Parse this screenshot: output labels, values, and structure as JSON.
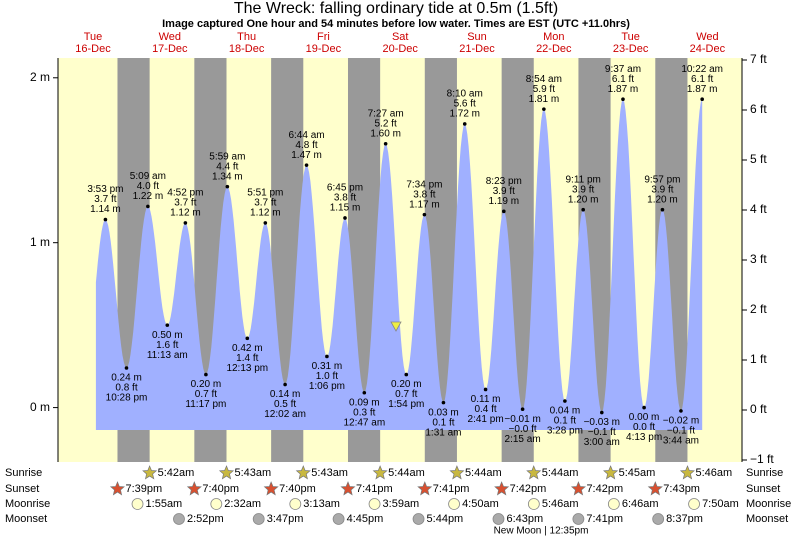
{
  "chart_data": {
    "type": "tide",
    "title": "The Wreck: falling  ordinary tide at 0.5m (1.5ft)",
    "subtitle": "Image captured One hour and 54 minutes before low water. Times are EST (UTC +11.0hrs)",
    "ylim": [
      -0.33,
      2.12
    ],
    "yticks": [
      {
        "value": 2,
        "label": "2 m"
      },
      {
        "value": 1,
        "label": "1 m"
      },
      {
        "value": 0,
        "label": "0 m"
      }
    ],
    "y2lim": [
      -1.04,
      7.04
    ],
    "y2ticks": [
      {
        "value": 7,
        "label": "7 ft"
      },
      {
        "value": 6,
        "label": "6 ft"
      },
      {
        "value": 5,
        "label": "5 ft"
      },
      {
        "value": 4,
        "label": "4 ft"
      },
      {
        "value": 3,
        "label": "3 ft"
      },
      {
        "value": 2,
        "label": "2 ft"
      },
      {
        "value": 1,
        "label": "1 ft"
      },
      {
        "value": 0,
        "label": "0 ft"
      },
      {
        "value": -1,
        "label": "−1 ft"
      }
    ],
    "row_labels": [
      "Sunrise",
      "Sunset",
      "Moonrise",
      "Moonset"
    ],
    "moon_phase": "New Moon | 12:35pm",
    "days": [
      {
        "weekday": "Tue",
        "date": "16-Dec",
        "sunset": "7:39pm",
        "tides": [
          {
            "time": "3:53 pm",
            "height": 1.14,
            "label_m": "1.14 m",
            "label_ft": "3.7 ft"
          },
          {
            "time": "10:28 pm",
            "height": 0.24,
            "label_m": "0.24 m",
            "label_ft": "0.8 ft"
          }
        ]
      },
      {
        "weekday": "Wed",
        "date": "17-Dec",
        "sunrise": "5:42am",
        "sunset": "7:40pm",
        "moonrise": "1:55am",
        "moonset": "2:52pm",
        "tides": [
          {
            "time": "5:09 am",
            "height": 1.22,
            "label_m": "1.22 m",
            "label_ft": "4.0 ft"
          },
          {
            "time": "11:13 am",
            "height": 0.5,
            "label_m": "0.50 m",
            "label_ft": "1.6 ft"
          },
          {
            "time": "4:52 pm",
            "height": 1.12,
            "label_m": "1.12 m",
            "label_ft": "3.7 ft"
          },
          {
            "time": "11:17 pm",
            "height": 0.2,
            "label_m": "0.20 m",
            "label_ft": "0.7 ft"
          }
        ]
      },
      {
        "weekday": "Thu",
        "date": "18-Dec",
        "sunrise": "5:43am",
        "sunset": "7:40pm",
        "moonrise": "2:32am",
        "moonset": "3:47pm",
        "tides": [
          {
            "time": "5:59 am",
            "height": 1.34,
            "label_m": "1.34 m",
            "label_ft": "4.4 ft"
          },
          {
            "time": "12:13 pm",
            "height": 0.42,
            "label_m": "0.42 m",
            "label_ft": "1.4 ft"
          },
          {
            "time": "5:51 pm",
            "height": 1.12,
            "label_m": "1.12 m",
            "label_ft": "3.7 ft"
          }
        ]
      },
      {
        "weekday": "Fri",
        "date": "19-Dec",
        "sunrise": "5:43am",
        "sunset": "7:41pm",
        "moonrise": "3:13am",
        "moonset": "4:45pm",
        "tides": [
          {
            "time": "12:02 am",
            "height": 0.14,
            "label_m": "0.14 m",
            "label_ft": "0.5 ft"
          },
          {
            "time": "6:44 am",
            "height": 1.47,
            "label_m": "1.47 m",
            "label_ft": "4.8 ft"
          },
          {
            "time": "1:06 pm",
            "height": 0.31,
            "label_m": "0.31 m",
            "label_ft": "1.0 ft"
          },
          {
            "time": "6:45 pm",
            "height": 1.15,
            "label_m": "1.15 m",
            "label_ft": "3.8 ft"
          }
        ]
      },
      {
        "weekday": "Sat",
        "date": "20-Dec",
        "sunrise": "5:44am",
        "sunset": "7:41pm",
        "moonrise": "3:59am",
        "moonset": "5:44pm",
        "tides": [
          {
            "time": "12:47 am",
            "height": 0.09,
            "label_m": "0.09 m",
            "label_ft": "0.3 ft"
          },
          {
            "time": "7:27 am",
            "height": 1.6,
            "label_m": "1.60 m",
            "label_ft": "5.2 ft"
          },
          {
            "time": "1:54 pm",
            "height": 0.2,
            "label_m": "0.20 m",
            "label_ft": "0.7 ft"
          },
          {
            "time": "7:34 pm",
            "height": 1.17,
            "label_m": "1.17 m",
            "label_ft": "3.8 ft"
          }
        ]
      },
      {
        "weekday": "Sun",
        "date": "21-Dec",
        "sunrise": "5:44am",
        "sunset": "7:42pm",
        "moonrise": "4:50am",
        "moonset": "6:43pm",
        "tides": [
          {
            "time": "1:31 am",
            "height": 0.03,
            "label_m": "0.03 m",
            "label_ft": "0.1 ft"
          },
          {
            "time": "8:10 am",
            "height": 1.72,
            "label_m": "1.72 m",
            "label_ft": "5.6 ft"
          },
          {
            "time": "2:41 pm",
            "height": 0.11,
            "label_m": "0.11 m",
            "label_ft": "0.4 ft"
          },
          {
            "time": "8:23 pm",
            "height": 1.19,
            "label_m": "1.19 m",
            "label_ft": "3.9 ft"
          }
        ]
      },
      {
        "weekday": "Mon",
        "date": "22-Dec",
        "sunrise": "5:44am",
        "sunset": "7:42pm",
        "moonrise": "5:46am",
        "moonset": "7:41pm",
        "tides": [
          {
            "time": "2:15 am",
            "height": -0.01,
            "label_m": "−0.01 m",
            "label_ft": "−0.0 ft"
          },
          {
            "time": "8:54 am",
            "height": 1.81,
            "label_m": "1.81 m",
            "label_ft": "5.9 ft"
          },
          {
            "time": "3:28 pm",
            "height": 0.04,
            "label_m": "0.04 m",
            "label_ft": "0.1 ft"
          },
          {
            "time": "9:11 pm",
            "height": 1.2,
            "label_m": "1.20 m",
            "label_ft": "3.9 ft"
          }
        ]
      },
      {
        "weekday": "Tue",
        "date": "23-Dec",
        "sunrise": "5:45am",
        "sunset": "7:43pm",
        "moonrise": "6:46am",
        "moonset": "8:37pm",
        "tides": [
          {
            "time": "3:00 am",
            "height": -0.03,
            "label_m": "−0.03 m",
            "label_ft": "−0.1 ft"
          },
          {
            "time": "9:37 am",
            "height": 1.87,
            "label_m": "1.87 m",
            "label_ft": "6.1 ft"
          },
          {
            "time": "4:13 pm",
            "height": 0.0,
            "label_m": "0.00 m",
            "label_ft": "0.0 ft"
          },
          {
            "time": "9:57 pm",
            "height": 1.2,
            "label_m": "1.20 m",
            "label_ft": "3.9 ft"
          }
        ]
      },
      {
        "weekday": "Wed",
        "date": "24-Dec",
        "sunrise": "5:46am",
        "moonrise": "7:50am",
        "tides": [
          {
            "time": "3:44 am",
            "height": -0.02,
            "label_m": "−0.02 m",
            "label_ft": "−0.1 ft"
          },
          {
            "time": "10:22 am",
            "height": 1.87,
            "label_m": "1.87 m",
            "label_ft": "6.1 ft"
          }
        ]
      }
    ]
  }
}
